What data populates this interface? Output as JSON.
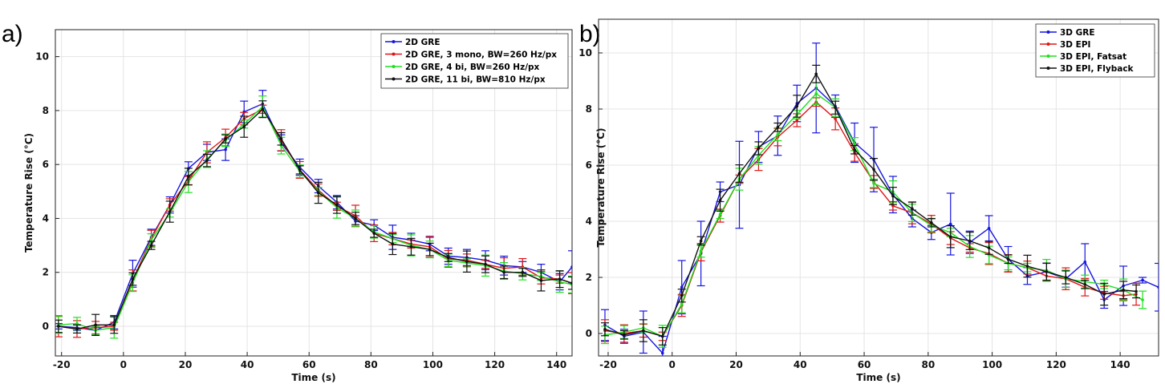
{
  "chart_data": [
    {
      "type": "line",
      "panel_label": "a)",
      "xlabel": "Time (s)",
      "ylabel": "Temperature Rise (°C)",
      "xlim": [
        -22,
        145
      ],
      "ylim": [
        -1.1,
        11
      ],
      "xticks": [
        -20,
        0,
        20,
        40,
        60,
        80,
        100,
        120,
        140
      ],
      "yticks": [
        0,
        2,
        4,
        6,
        8,
        10
      ],
      "grid": true,
      "legend_position": "top-right",
      "x": [
        -21,
        -15,
        -9,
        -3,
        3,
        9,
        15,
        21,
        27,
        33,
        39,
        45,
        51,
        57,
        63,
        69,
        75,
        81,
        87,
        93,
        99,
        105,
        111,
        117,
        123,
        129,
        135,
        141,
        145
      ],
      "series": [
        {
          "name": "2D GRE",
          "color": "#1515e0",
          "values": [
            0.0,
            -0.05,
            -0.15,
            0.15,
            1.95,
            3.3,
            4.5,
            5.85,
            6.45,
            6.55,
            7.95,
            8.25,
            6.8,
            5.9,
            5.2,
            4.6,
            3.9,
            3.75,
            3.3,
            3.2,
            3.05,
            2.6,
            2.55,
            2.45,
            2.25,
            2.2,
            2.0,
            1.65,
            2.2
          ],
          "errors": [
            0.1,
            0.1,
            0.15,
            0.25,
            0.5,
            0.3,
            0.3,
            0.25,
            0.3,
            0.4,
            0.4,
            0.5,
            0.3,
            0.3,
            0.25,
            0.25,
            0.2,
            0.2,
            0.45,
            0.25,
            0.25,
            0.3,
            0.3,
            0.35,
            0.35,
            0.2,
            0.3,
            0.3,
            0.6
          ]
        },
        {
          "name": "2D GRE, 3 mono, BW=260 Hz/px",
          "color": "#e01515",
          "values": [
            0.0,
            -0.1,
            -0.05,
            0.0,
            1.7,
            3.25,
            4.5,
            5.4,
            6.45,
            7.0,
            7.7,
            8.05,
            6.9,
            5.8,
            5.05,
            4.45,
            4.1,
            3.45,
            3.25,
            3.05,
            2.95,
            2.5,
            2.45,
            2.3,
            2.15,
            2.2,
            1.8,
            1.75,
            1.6
          ]
        },
        {
          "name": "2D GRE, 4 bi, BW=260 Hz/px",
          "color": "#1ee01e",
          "values": [
            0.05,
            0.1,
            -0.15,
            -0.05,
            1.6,
            3.2,
            4.2,
            5.35,
            6.2,
            6.9,
            7.5,
            8.15,
            6.7,
            5.75,
            5.0,
            4.4,
            4.0,
            3.5,
            3.25,
            3.0,
            2.85,
            2.45,
            2.35,
            2.25,
            2.05,
            1.95,
            1.85,
            1.65,
            1.55
          ]
        },
        {
          "name": "2D GRE, 11 bi, BW=810 Hz/px",
          "color": "#111111",
          "values": [
            0.0,
            -0.1,
            0.05,
            0.05,
            1.75,
            3.0,
            4.25,
            5.55,
            6.15,
            6.95,
            7.4,
            8.05,
            6.95,
            5.8,
            4.95,
            4.5,
            4.0,
            3.45,
            3.05,
            2.95,
            2.85,
            2.55,
            2.4,
            2.3,
            2.0,
            2.0,
            1.7,
            1.75,
            1.6
          ]
        }
      ]
    },
    {
      "type": "line",
      "panel_label": "b)",
      "xlabel": "Time (s)",
      "ylabel": "Temperature Rise (°C)",
      "xlim": [
        -23,
        152
      ],
      "ylim": [
        -0.8,
        11.2
      ],
      "xticks": [
        -20,
        0,
        20,
        40,
        60,
        80,
        100,
        120,
        140
      ],
      "yticks": [
        0,
        2,
        4,
        6,
        8,
        10
      ],
      "grid": true,
      "legend_position": "top-right",
      "series": [
        {
          "name": "3D GRE",
          "color": "#1515e0",
          "x": [
            -21,
            -15,
            -9,
            -3,
            3,
            9,
            15,
            21,
            27,
            33,
            39,
            45,
            51,
            57,
            63,
            69,
            75,
            81,
            87,
            93,
            99,
            105,
            111,
            117,
            123,
            129,
            135,
            141,
            147,
            152
          ],
          "values": [
            0.3,
            -0.1,
            0.05,
            -0.7,
            1.65,
            2.85,
            5.05,
            5.3,
            6.65,
            7.05,
            8.2,
            8.75,
            8.1,
            6.8,
            6.2,
            4.95,
            4.1,
            3.6,
            3.9,
            3.25,
            3.75,
            2.65,
            2.05,
            2.2,
            1.95,
            2.55,
            1.2,
            1.7,
            1.9,
            1.65
          ],
          "errors": [
            0.55,
            0.25,
            0.75,
            0.6,
            0.95,
            1.15,
            0.35,
            1.55,
            0.55,
            0.7,
            0.65,
            1.6,
            0.4,
            0.7,
            1.15,
            0.65,
            0.3,
            0.25,
            1.1,
            0.4,
            0.45,
            0.45,
            0.3,
            0.3,
            0.3,
            0.65,
            0.3,
            0.7,
            0.1,
            0.85
          ]
        },
        {
          "name": "3D EPI",
          "color": "#e01515",
          "x": [
            -21,
            -15,
            -9,
            -3,
            3,
            9,
            15,
            21,
            27,
            33,
            39,
            45,
            51,
            57,
            63,
            69,
            75,
            81,
            87,
            93,
            99,
            105,
            111,
            117,
            123,
            129,
            135,
            141,
            145
          ],
          "values": [
            0.1,
            0.0,
            0.1,
            -0.1,
            1.0,
            2.9,
            4.2,
            5.5,
            6.2,
            7.0,
            7.6,
            8.25,
            7.65,
            6.45,
            5.4,
            4.55,
            4.3,
            3.9,
            3.4,
            3.05,
            2.85,
            2.5,
            2.35,
            2.05,
            1.95,
            1.65,
            1.45,
            1.35,
            1.4
          ]
        },
        {
          "name": "3D EPI, Fatsat",
          "color": "#1ee01e",
          "x": [
            -21,
            -15,
            -9,
            -3,
            3,
            9,
            15,
            21,
            27,
            33,
            39,
            45,
            51,
            57,
            63,
            69,
            75,
            81,
            87,
            93,
            99,
            105,
            111,
            117,
            123,
            129,
            135,
            141,
            147
          ],
          "values": [
            -0.05,
            0.05,
            0.2,
            -0.1,
            1.05,
            2.95,
            4.25,
            5.5,
            6.35,
            7.1,
            7.8,
            8.55,
            8.05,
            6.75,
            5.35,
            5.05,
            4.3,
            3.85,
            3.6,
            3.1,
            2.8,
            2.5,
            2.35,
            2.25,
            1.95,
            1.85,
            1.75,
            1.55,
            1.2
          ]
        },
        {
          "name": "3D EPI, Flyback",
          "color": "#111111",
          "x": [
            -21,
            -15,
            -9,
            -3,
            3,
            9,
            15,
            21,
            27,
            33,
            39,
            45,
            51,
            57,
            63,
            69,
            75,
            81,
            87,
            93,
            99,
            105,
            111,
            117,
            123,
            129,
            135,
            141,
            145
          ],
          "values": [
            0.15,
            -0.05,
            0.1,
            -0.1,
            1.35,
            3.3,
            4.75,
            5.7,
            6.6,
            7.35,
            8.1,
            9.25,
            8.05,
            6.55,
            5.85,
            4.9,
            4.45,
            3.95,
            3.45,
            3.3,
            3.05,
            2.65,
            2.4,
            2.2,
            2.0,
            1.75,
            1.4,
            1.55,
            1.5
          ]
        }
      ]
    }
  ]
}
